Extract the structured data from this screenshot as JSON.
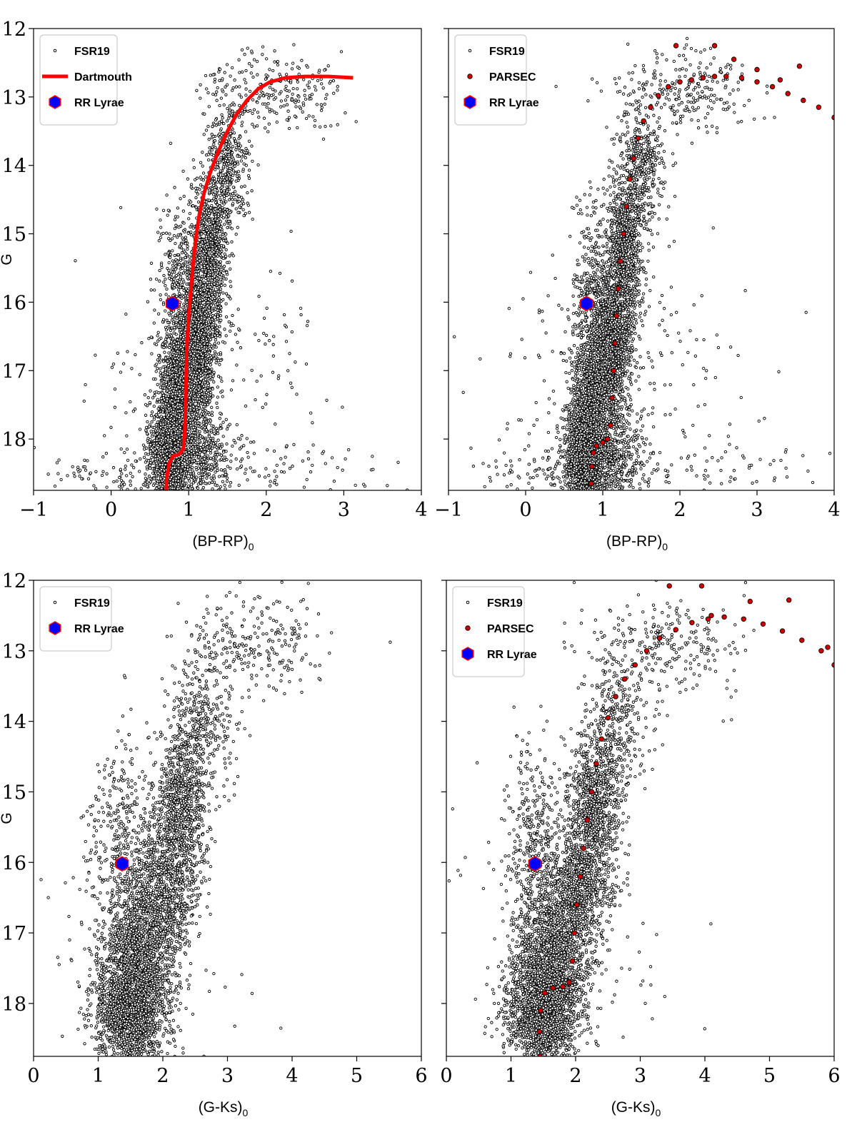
{
  "chart_data": [
    {
      "type": "scatter",
      "panel": "top-left",
      "xlabel": "(BP-RP)",
      "xlabel_sub": "0",
      "ylabel": "G",
      "xlim": [
        -1,
        4
      ],
      "ylim": [
        18.75,
        12
      ],
      "xticks": [
        -1,
        0,
        1,
        2,
        3,
        4
      ],
      "xtick_labels": [
        "−1",
        "0",
        "1",
        "2",
        "3",
        "4"
      ],
      "yticks": [
        12,
        13,
        14,
        15,
        16,
        17,
        18
      ],
      "ytick_labels": [
        "12",
        "13",
        "14",
        "15",
        "16",
        "17",
        "18"
      ],
      "show_yaxis": true,
      "legend": {
        "position": "top-left",
        "entries": [
          "FSR19",
          "Dartmouth",
          "RR Lyrae"
        ]
      },
      "series": [
        {
          "name": "FSR19",
          "kind": "points",
          "color": "#000000",
          "facecolor": "#ffffff"
        },
        {
          "name": "Dartmouth",
          "kind": "line",
          "color": "#ff0000",
          "x": [
            0.71,
            0.72,
            0.75,
            0.8,
            0.88,
            0.93,
            0.95,
            0.96,
            0.97,
            0.98,
            1.0,
            1.03,
            1.06,
            1.1,
            1.14,
            1.2,
            1.28,
            1.38,
            1.5,
            1.62,
            1.75,
            1.9,
            2.05,
            2.25,
            2.5,
            2.8,
            3.12
          ],
          "y": [
            18.75,
            18.55,
            18.35,
            18.25,
            18.22,
            18.15,
            17.9,
            17.5,
            17.0,
            16.6,
            16.2,
            15.8,
            15.4,
            15.0,
            14.7,
            14.4,
            14.1,
            13.8,
            13.5,
            13.25,
            13.05,
            12.88,
            12.78,
            12.72,
            12.7,
            12.7,
            12.72
          ]
        },
        {
          "name": "RR Lyrae",
          "kind": "marker",
          "color": "#0000ff",
          "edgecolor": "#ff0000",
          "x": [
            0.79
          ],
          "y": [
            16.02
          ]
        }
      ],
      "cloud": [
        {
          "x": 0.75,
          "y": 18.2,
          "sx": 0.12,
          "sy": 0.38,
          "n": 1200
        },
        {
          "x": 1.05,
          "y": 18.3,
          "sx": 0.25,
          "sy": 0.4,
          "n": 700
        },
        {
          "x": 0.85,
          "y": 17.3,
          "sx": 0.12,
          "sy": 0.45,
          "n": 900
        },
        {
          "x": 1.1,
          "y": 17.0,
          "sx": 0.12,
          "sy": 0.45,
          "n": 700
        },
        {
          "x": 1.15,
          "y": 16.2,
          "sx": 0.13,
          "sy": 0.4,
          "n": 700
        },
        {
          "x": 1.28,
          "y": 15.2,
          "sx": 0.12,
          "sy": 0.5,
          "n": 800
        },
        {
          "x": 0.85,
          "y": 15.8,
          "sx": 0.12,
          "sy": 0.6,
          "n": 300
        },
        {
          "x": 1.5,
          "y": 14.0,
          "sx": 0.15,
          "sy": 0.45,
          "n": 400
        },
        {
          "x": 2.1,
          "y": 12.9,
          "sx": 0.45,
          "sy": 0.3,
          "n": 250
        },
        {
          "x": 1.3,
          "y": 17.2,
          "sx": 0.8,
          "sy": 1.0,
          "n": 250
        },
        {
          "x": 0.2,
          "y": 18.5,
          "sx": 0.6,
          "sy": 0.2,
          "n": 120
        },
        {
          "x": 2.2,
          "y": 18.5,
          "sx": 0.8,
          "sy": 0.25,
          "n": 80
        }
      ]
    },
    {
      "type": "scatter",
      "panel": "top-right",
      "xlabel": "(BP-RP)",
      "xlabel_sub": "0",
      "ylabel": "",
      "xlim": [
        -1,
        4
      ],
      "ylim": [
        18.75,
        12
      ],
      "xticks": [
        -1,
        0,
        1,
        2,
        3,
        4
      ],
      "xtick_labels": [
        "−1",
        "0",
        "1",
        "2",
        "3",
        "4"
      ],
      "yticks": [
        12,
        13,
        14,
        15,
        16,
        17,
        18
      ],
      "ytick_labels": [],
      "show_yaxis": false,
      "legend": {
        "position": "top-left",
        "entries": [
          "FSR19",
          "PARSEC",
          "RR Lyrae"
        ]
      },
      "series": [
        {
          "name": "FSR19",
          "kind": "points",
          "color": "#000000",
          "facecolor": "#ffffff"
        },
        {
          "name": "PARSEC",
          "kind": "dots",
          "color": "#cc0000",
          "x": [
            0.85,
            0.86,
            0.88,
            0.92,
            1.0,
            1.06,
            1.1,
            1.12,
            1.14,
            1.16,
            1.18,
            1.2,
            1.23,
            1.27,
            1.31,
            1.35,
            1.4,
            1.46,
            1.53,
            1.62,
            1.72,
            1.85,
            2.0,
            2.15,
            2.3,
            2.45,
            2.6,
            2.8,
            3.0,
            3.2,
            3.4,
            3.6,
            3.8,
            4.0,
            1.95,
            2.45,
            2.7,
            3.0,
            3.55,
            3.3
          ],
          "y": [
            18.65,
            18.4,
            18.2,
            18.1,
            18.05,
            18.0,
            17.8,
            17.4,
            17.0,
            16.6,
            16.2,
            15.8,
            15.4,
            15.0,
            14.6,
            14.2,
            13.9,
            13.6,
            13.35,
            13.15,
            12.98,
            12.85,
            12.78,
            12.75,
            12.72,
            12.7,
            12.7,
            12.72,
            12.78,
            12.85,
            12.95,
            13.05,
            13.15,
            13.3,
            12.25,
            12.25,
            12.45,
            12.6,
            12.55,
            12.75
          ]
        },
        {
          "name": "RR Lyrae",
          "kind": "marker",
          "color": "#0000ff",
          "edgecolor": "#ff0000",
          "x": [
            0.79
          ],
          "y": [
            16.02
          ]
        }
      ],
      "cloud": [
        {
          "x": 0.75,
          "y": 18.2,
          "sx": 0.12,
          "sy": 0.38,
          "n": 1200
        },
        {
          "x": 1.05,
          "y": 18.3,
          "sx": 0.25,
          "sy": 0.4,
          "n": 700
        },
        {
          "x": 0.85,
          "y": 17.3,
          "sx": 0.12,
          "sy": 0.45,
          "n": 900
        },
        {
          "x": 1.1,
          "y": 17.0,
          "sx": 0.12,
          "sy": 0.45,
          "n": 700
        },
        {
          "x": 1.15,
          "y": 16.2,
          "sx": 0.13,
          "sy": 0.4,
          "n": 700
        },
        {
          "x": 1.28,
          "y": 15.2,
          "sx": 0.12,
          "sy": 0.5,
          "n": 800
        },
        {
          "x": 0.85,
          "y": 15.8,
          "sx": 0.12,
          "sy": 0.6,
          "n": 300
        },
        {
          "x": 1.5,
          "y": 14.0,
          "sx": 0.15,
          "sy": 0.45,
          "n": 400
        },
        {
          "x": 2.1,
          "y": 12.9,
          "sx": 0.45,
          "sy": 0.3,
          "n": 250
        },
        {
          "x": 1.3,
          "y": 17.2,
          "sx": 0.8,
          "sy": 1.0,
          "n": 250
        },
        {
          "x": 0.2,
          "y": 18.5,
          "sx": 0.6,
          "sy": 0.2,
          "n": 120
        },
        {
          "x": 2.2,
          "y": 18.5,
          "sx": 0.8,
          "sy": 0.25,
          "n": 80
        }
      ]
    },
    {
      "type": "scatter",
      "panel": "bottom-left",
      "xlabel": "(G-Ks)",
      "xlabel_sub": "0",
      "ylabel": "G",
      "xlim": [
        0,
        6
      ],
      "ylim": [
        18.75,
        12
      ],
      "xticks": [
        0,
        1,
        2,
        3,
        4,
        5,
        6
      ],
      "xtick_labels": [
        "0",
        "1",
        "2",
        "3",
        "4",
        "5",
        "6"
      ],
      "yticks": [
        12,
        13,
        14,
        15,
        16,
        17,
        18
      ],
      "ytick_labels": [
        "12",
        "13",
        "14",
        "15",
        "16",
        "17",
        "18"
      ],
      "show_yaxis": true,
      "legend": {
        "position": "top-left",
        "entries": [
          "FSR19",
          "RR Lyrae"
        ]
      },
      "series": [
        {
          "name": "FSR19",
          "kind": "points",
          "color": "#000000",
          "facecolor": "#ffffff"
        },
        {
          "name": "RR Lyrae",
          "kind": "marker",
          "color": "#0000ff",
          "edgecolor": "#ff0000",
          "x": [
            1.37
          ],
          "y": [
            16.02
          ]
        }
      ],
      "cloud": [
        {
          "x": 1.5,
          "y": 18.1,
          "sx": 0.28,
          "sy": 0.45,
          "n": 1800
        },
        {
          "x": 1.7,
          "y": 17.2,
          "sx": 0.28,
          "sy": 0.45,
          "n": 1000
        },
        {
          "x": 2.05,
          "y": 16.3,
          "sx": 0.25,
          "sy": 0.45,
          "n": 700
        },
        {
          "x": 2.3,
          "y": 15.2,
          "sx": 0.2,
          "sy": 0.5,
          "n": 800
        },
        {
          "x": 1.4,
          "y": 15.8,
          "sx": 0.25,
          "sy": 0.8,
          "n": 400
        },
        {
          "x": 2.6,
          "y": 14.0,
          "sx": 0.25,
          "sy": 0.5,
          "n": 350
        },
        {
          "x": 3.4,
          "y": 12.9,
          "sx": 0.55,
          "sy": 0.35,
          "n": 250
        },
        {
          "x": 1.8,
          "y": 16.8,
          "sx": 0.8,
          "sy": 1.1,
          "n": 150
        }
      ]
    },
    {
      "type": "scatter",
      "panel": "bottom-right",
      "xlabel": "(G-Ks)",
      "xlabel_sub": "0",
      "ylabel": "",
      "xlim": [
        0,
        6
      ],
      "ylim": [
        18.75,
        12
      ],
      "xticks": [
        0,
        1,
        2,
        3,
        4,
        5,
        6
      ],
      "xtick_labels": [
        "0",
        "1",
        "2",
        "3",
        "4",
        "5",
        "6"
      ],
      "yticks": [
        12,
        13,
        14,
        15,
        16,
        17,
        18
      ],
      "ytick_labels": [],
      "show_yaxis": false,
      "legend": {
        "position": "top-left",
        "entries": [
          "FSR19",
          "PARSEC",
          "RR Lyrae"
        ]
      },
      "series": [
        {
          "name": "FSR19",
          "kind": "points",
          "color": "#000000",
          "facecolor": "#ffffff"
        },
        {
          "name": "PARSEC",
          "kind": "dots",
          "color": "#cc0000",
          "x": [
            1.45,
            1.44,
            1.46,
            1.52,
            1.65,
            1.8,
            1.9,
            1.95,
            1.98,
            2.02,
            2.07,
            2.12,
            2.18,
            2.25,
            2.32,
            2.4,
            2.5,
            2.62,
            2.76,
            2.92,
            3.1,
            3.3,
            3.55,
            3.8,
            4.05,
            4.3,
            4.6,
            4.9,
            5.2,
            5.5,
            5.8,
            6.0,
            3.45,
            3.95,
            4.7,
            5.3,
            4.1,
            5.9
          ],
          "y": [
            18.75,
            18.4,
            18.1,
            17.85,
            17.78,
            17.76,
            17.7,
            17.4,
            17.0,
            16.6,
            16.2,
            15.8,
            15.4,
            15.0,
            14.6,
            14.25,
            13.95,
            13.65,
            13.4,
            13.2,
            13.0,
            12.82,
            12.7,
            12.6,
            12.55,
            12.52,
            12.55,
            12.62,
            12.72,
            12.85,
            13.0,
            13.2,
            12.08,
            12.08,
            12.3,
            12.28,
            12.5,
            12.95
          ]
        },
        {
          "name": "RR Lyrae",
          "kind": "marker",
          "color": "#0000ff",
          "edgecolor": "#ff0000",
          "x": [
            1.37
          ],
          "y": [
            16.02
          ]
        }
      ],
      "cloud": [
        {
          "x": 1.5,
          "y": 18.1,
          "sx": 0.28,
          "sy": 0.45,
          "n": 1800
        },
        {
          "x": 1.7,
          "y": 17.2,
          "sx": 0.28,
          "sy": 0.45,
          "n": 1000
        },
        {
          "x": 2.05,
          "y": 16.3,
          "sx": 0.25,
          "sy": 0.45,
          "n": 700
        },
        {
          "x": 2.3,
          "y": 15.2,
          "sx": 0.2,
          "sy": 0.5,
          "n": 800
        },
        {
          "x": 1.4,
          "y": 15.8,
          "sx": 0.25,
          "sy": 0.8,
          "n": 400
        },
        {
          "x": 2.6,
          "y": 14.0,
          "sx": 0.25,
          "sy": 0.5,
          "n": 350
        },
        {
          "x": 3.4,
          "y": 12.9,
          "sx": 0.55,
          "sy": 0.35,
          "n": 250
        },
        {
          "x": 1.8,
          "y": 16.8,
          "sx": 0.8,
          "sy": 1.1,
          "n": 150
        }
      ]
    }
  ]
}
